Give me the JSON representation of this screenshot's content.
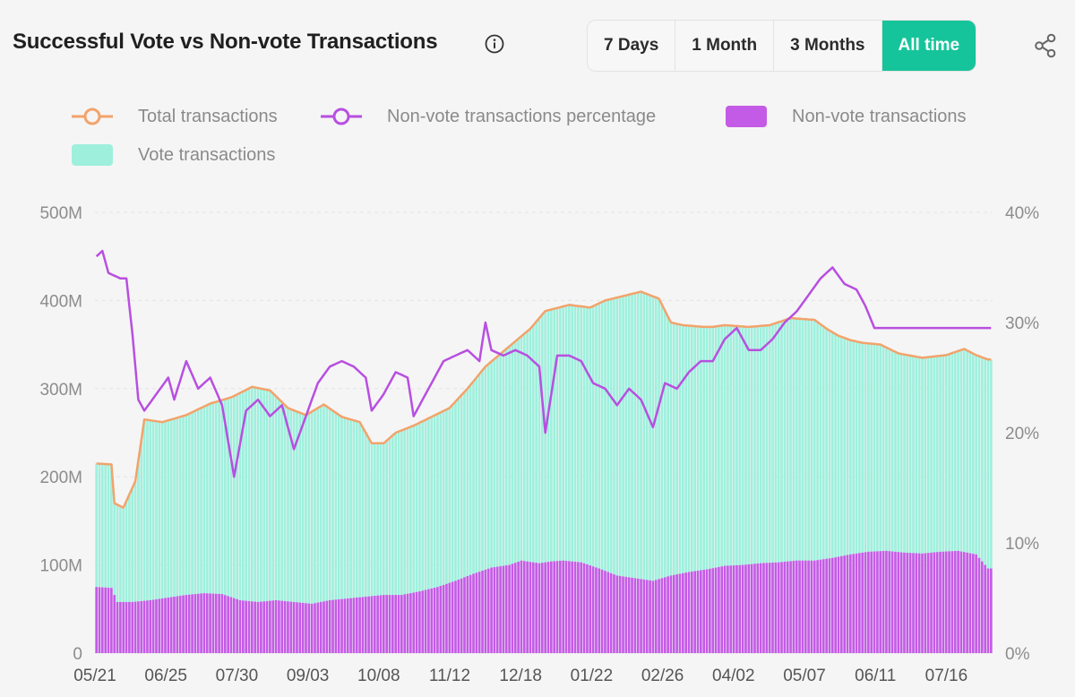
{
  "header": {
    "title": "Successful Vote vs Non-vote Transactions",
    "info_icon": "info-icon",
    "share_icon": "share-icon"
  },
  "range_buttons": [
    {
      "label": "7 Days",
      "active": false
    },
    {
      "label": "1 Month",
      "active": false
    },
    {
      "label": "3 Months",
      "active": false
    },
    {
      "label": "All time",
      "active": true
    }
  ],
  "colors": {
    "total": "#f2a36b",
    "percentage": "#b84fe0",
    "nonvote": "#c45be6",
    "vote": "#9ef0dd",
    "accent": "#16c49b"
  },
  "legend": [
    {
      "label": "Total transactions",
      "style": "line-circle",
      "color": "#f2a36b"
    },
    {
      "label": "Non-vote transactions percentage",
      "style": "line-circle",
      "color": "#b84fe0"
    },
    {
      "label": "Non-vote transactions",
      "style": "box",
      "color": "#c45be6"
    },
    {
      "label": "Vote transactions",
      "style": "box",
      "color": "#9ef0dd"
    }
  ],
  "chart_data": {
    "type": "bar",
    "stacked": true,
    "x_tick_labels": [
      "05/21",
      "06/25",
      "07/30",
      "09/03",
      "10/08",
      "11/12",
      "12/18",
      "01/22",
      "02/26",
      "04/02",
      "05/07",
      "06/11",
      "07/16"
    ],
    "y_left": {
      "min": 0,
      "max": 500,
      "unit": "M",
      "ticks": [
        "0",
        "100M",
        "200M",
        "300M",
        "400M",
        "500M"
      ]
    },
    "y_right": {
      "min": 0,
      "max": 40,
      "unit": "%",
      "ticks": [
        "0%",
        "10%",
        "20%",
        "30%",
        "40%"
      ]
    },
    "grid": "horizontal-dashed",
    "legend_position": "top",
    "total_transactions_anchors_M": [
      [
        0,
        215
      ],
      [
        5,
        214
      ],
      [
        6,
        170
      ],
      [
        9,
        165
      ],
      [
        13,
        195
      ],
      [
        16,
        265
      ],
      [
        22,
        262
      ],
      [
        30,
        270
      ],
      [
        38,
        283
      ],
      [
        45,
        290
      ],
      [
        52,
        302
      ],
      [
        58,
        298
      ],
      [
        64,
        278
      ],
      [
        70,
        270
      ],
      [
        76,
        282
      ],
      [
        82,
        268
      ],
      [
        88,
        262
      ],
      [
        92,
        238
      ],
      [
        96,
        238
      ],
      [
        100,
        250
      ],
      [
        106,
        258
      ],
      [
        112,
        268
      ],
      [
        118,
        278
      ],
      [
        124,
        300
      ],
      [
        130,
        325
      ],
      [
        138,
        348
      ],
      [
        145,
        368
      ],
      [
        150,
        388
      ],
      [
        158,
        395
      ],
      [
        165,
        392
      ],
      [
        170,
        400
      ],
      [
        176,
        405
      ],
      [
        182,
        410
      ],
      [
        188,
        402
      ],
      [
        192,
        375
      ],
      [
        196,
        372
      ],
      [
        203,
        370
      ],
      [
        206,
        370
      ],
      [
        210,
        372
      ],
      [
        218,
        370
      ],
      [
        225,
        372
      ],
      [
        232,
        380
      ],
      [
        240,
        378
      ],
      [
        244,
        368
      ],
      [
        248,
        360
      ],
      [
        252,
        355
      ],
      [
        256,
        352
      ],
      [
        262,
        350
      ],
      [
        268,
        340
      ],
      [
        276,
        335
      ],
      [
        284,
        338
      ],
      [
        290,
        345
      ],
      [
        294,
        338
      ],
      [
        298,
        333
      ]
    ],
    "nonvote_percentage_anchors": [
      [
        0,
        36.0
      ],
      [
        2,
        36.5
      ],
      [
        4,
        34.5
      ],
      [
        8,
        34.0
      ],
      [
        10,
        34.0
      ],
      [
        12,
        29.0
      ],
      [
        14,
        23.0
      ],
      [
        16,
        22.0
      ],
      [
        20,
        23.5
      ],
      [
        24,
        25.0
      ],
      [
        26,
        23.0
      ],
      [
        30,
        26.5
      ],
      [
        34,
        24.0
      ],
      [
        38,
        25.0
      ],
      [
        42,
        22.5
      ],
      [
        46,
        16.0
      ],
      [
        50,
        22.0
      ],
      [
        54,
        23.0
      ],
      [
        58,
        21.5
      ],
      [
        62,
        22.5
      ],
      [
        66,
        18.5
      ],
      [
        70,
        21.5
      ],
      [
        74,
        24.5
      ],
      [
        78,
        26.0
      ],
      [
        82,
        26.5
      ],
      [
        86,
        26.0
      ],
      [
        90,
        25.0
      ],
      [
        92,
        22.0
      ],
      [
        96,
        23.5
      ],
      [
        100,
        25.5
      ],
      [
        104,
        25.0
      ],
      [
        106,
        21.5
      ],
      [
        108,
        22.5
      ],
      [
        112,
        24.5
      ],
      [
        116,
        26.5
      ],
      [
        120,
        27.0
      ],
      [
        124,
        27.5
      ],
      [
        128,
        26.5
      ],
      [
        130,
        30.0
      ],
      [
        132,
        27.5
      ],
      [
        136,
        27.0
      ],
      [
        140,
        27.5
      ],
      [
        144,
        27.0
      ],
      [
        148,
        26.0
      ],
      [
        150,
        20.0
      ],
      [
        154,
        27.0
      ],
      [
        158,
        27.0
      ],
      [
        162,
        26.5
      ],
      [
        166,
        24.5
      ],
      [
        170,
        24.0
      ],
      [
        174,
        22.5
      ],
      [
        178,
        24.0
      ],
      [
        182,
        23.0
      ],
      [
        186,
        20.5
      ],
      [
        190,
        24.5
      ],
      [
        194,
        24.0
      ],
      [
        198,
        25.5
      ],
      [
        202,
        26.5
      ],
      [
        206,
        26.5
      ],
      [
        210,
        28.5
      ],
      [
        214,
        29.5
      ],
      [
        218,
        27.5
      ],
      [
        222,
        27.5
      ],
      [
        226,
        28.5
      ],
      [
        230,
        30.0
      ],
      [
        234,
        31.0
      ],
      [
        238,
        32.5
      ],
      [
        242,
        34.0
      ],
      [
        246,
        35.0
      ],
      [
        250,
        33.5
      ],
      [
        254,
        33.0
      ],
      [
        257,
        31.5
      ],
      [
        260,
        29.5
      ]
    ],
    "nonvote_transactions_anchors_M": [
      [
        0,
        75
      ],
      [
        5,
        74
      ],
      [
        7,
        58
      ],
      [
        12,
        58
      ],
      [
        18,
        60
      ],
      [
        24,
        63
      ],
      [
        30,
        66
      ],
      [
        36,
        68
      ],
      [
        42,
        67
      ],
      [
        48,
        60
      ],
      [
        54,
        58
      ],
      [
        60,
        60
      ],
      [
        66,
        58
      ],
      [
        72,
        56
      ],
      [
        78,
        60
      ],
      [
        84,
        62
      ],
      [
        90,
        64
      ],
      [
        96,
        66
      ],
      [
        102,
        66
      ],
      [
        108,
        70
      ],
      [
        114,
        75
      ],
      [
        120,
        82
      ],
      [
        126,
        90
      ],
      [
        132,
        97
      ],
      [
        138,
        100
      ],
      [
        142,
        105
      ],
      [
        148,
        102
      ],
      [
        152,
        104
      ],
      [
        156,
        105
      ],
      [
        162,
        103
      ],
      [
        168,
        96
      ],
      [
        174,
        88
      ],
      [
        180,
        85
      ],
      [
        186,
        82
      ],
      [
        192,
        88
      ],
      [
        198,
        92
      ],
      [
        204,
        95
      ],
      [
        210,
        99
      ],
      [
        216,
        100
      ],
      [
        222,
        102
      ],
      [
        228,
        103
      ],
      [
        234,
        105
      ],
      [
        240,
        105
      ],
      [
        246,
        108
      ],
      [
        252,
        112
      ],
      [
        258,
        115
      ],
      [
        264,
        116
      ],
      [
        270,
        114
      ],
      [
        276,
        113
      ],
      [
        282,
        115
      ],
      [
        288,
        116
      ],
      [
        294,
        112
      ],
      [
        298,
        96
      ]
    ],
    "sample_count": 300
  }
}
